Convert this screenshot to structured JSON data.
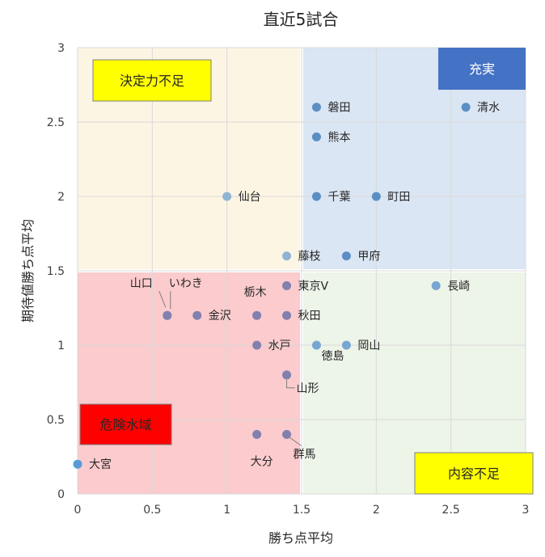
{
  "chart_data": {
    "type": "scatter",
    "title": "直近5試合",
    "xlabel": "勝ち点平均",
    "ylabel": "期待値勝ち点平均",
    "xlim": [
      0,
      3
    ],
    "ylim": [
      0,
      3
    ],
    "xticks": [
      "0",
      "0.5",
      "1",
      "1.5",
      "2",
      "2.5",
      "3"
    ],
    "yticks": [
      "0",
      "0.5",
      "1",
      "1.5",
      "2",
      "2.5",
      "3"
    ],
    "grid": true,
    "zones": [
      {
        "label": "決定力不足",
        "x_range": [
          0,
          1.5
        ],
        "y_range": [
          1.5,
          3
        ],
        "fill": "#fdf5e3",
        "box": "#ffff00",
        "text_color": "#262626"
      },
      {
        "label": "充実",
        "x_range": [
          1.5,
          3
        ],
        "y_range": [
          1.5,
          3
        ],
        "fill": "#dbe6f4",
        "box": "#4472c4",
        "text_color": "#ffffff"
      },
      {
        "label": "危険水域",
        "x_range": [
          0,
          1.5
        ],
        "y_range": [
          0,
          1.5
        ],
        "fill": "#fbcbcd",
        "box": "#ff0000",
        "text_color": "#262626"
      },
      {
        "label": "内容不足",
        "x_range": [
          1.5,
          3
        ],
        "y_range": [
          0,
          1.5
        ],
        "fill": "#edf4e8",
        "box": "#ffff00",
        "text_color": "#262626"
      }
    ],
    "points": [
      {
        "name": "磐田",
        "x": 1.6,
        "y": 2.6
      },
      {
        "name": "清水",
        "x": 2.6,
        "y": 2.6
      },
      {
        "name": "熊本",
        "x": 1.6,
        "y": 2.4
      },
      {
        "name": "仙台",
        "x": 1.0,
        "y": 2.0
      },
      {
        "name": "千葉",
        "x": 1.6,
        "y": 2.0
      },
      {
        "name": "町田",
        "x": 2.0,
        "y": 2.0
      },
      {
        "name": "藤枝",
        "x": 1.4,
        "y": 1.6
      },
      {
        "name": "甲府",
        "x": 1.8,
        "y": 1.6
      },
      {
        "name": "東京V",
        "x": 1.4,
        "y": 1.4
      },
      {
        "name": "長崎",
        "x": 2.4,
        "y": 1.4
      },
      {
        "name": "山口",
        "x": 0.6,
        "y": 1.2
      },
      {
        "name": "いわき",
        "x": 0.6,
        "y": 1.2
      },
      {
        "name": "金沢",
        "x": 0.8,
        "y": 1.2
      },
      {
        "name": "栃木",
        "x": 1.2,
        "y": 1.2
      },
      {
        "name": "秋田",
        "x": 1.4,
        "y": 1.2
      },
      {
        "name": "水戸",
        "x": 1.2,
        "y": 1.0
      },
      {
        "name": "徳島",
        "x": 1.6,
        "y": 1.0
      },
      {
        "name": "岡山",
        "x": 1.8,
        "y": 1.0
      },
      {
        "name": "山形",
        "x": 1.4,
        "y": 0.8
      },
      {
        "name": "大分",
        "x": 1.2,
        "y": 0.4
      },
      {
        "name": "群馬",
        "x": 1.4,
        "y": 0.4
      },
      {
        "name": "大宮",
        "x": 0.0,
        "y": 0.2
      }
    ],
    "colors": {
      "point_bright": "#5b9bd5",
      "point_on_blue": "#5b8fc4",
      "point_on_yellow": "#8fb4d4",
      "point_on_red": "#8280ad",
      "point_on_green": "#78a6d2",
      "grid": "#d9d9d9",
      "leader": "#7f7f7f"
    }
  }
}
